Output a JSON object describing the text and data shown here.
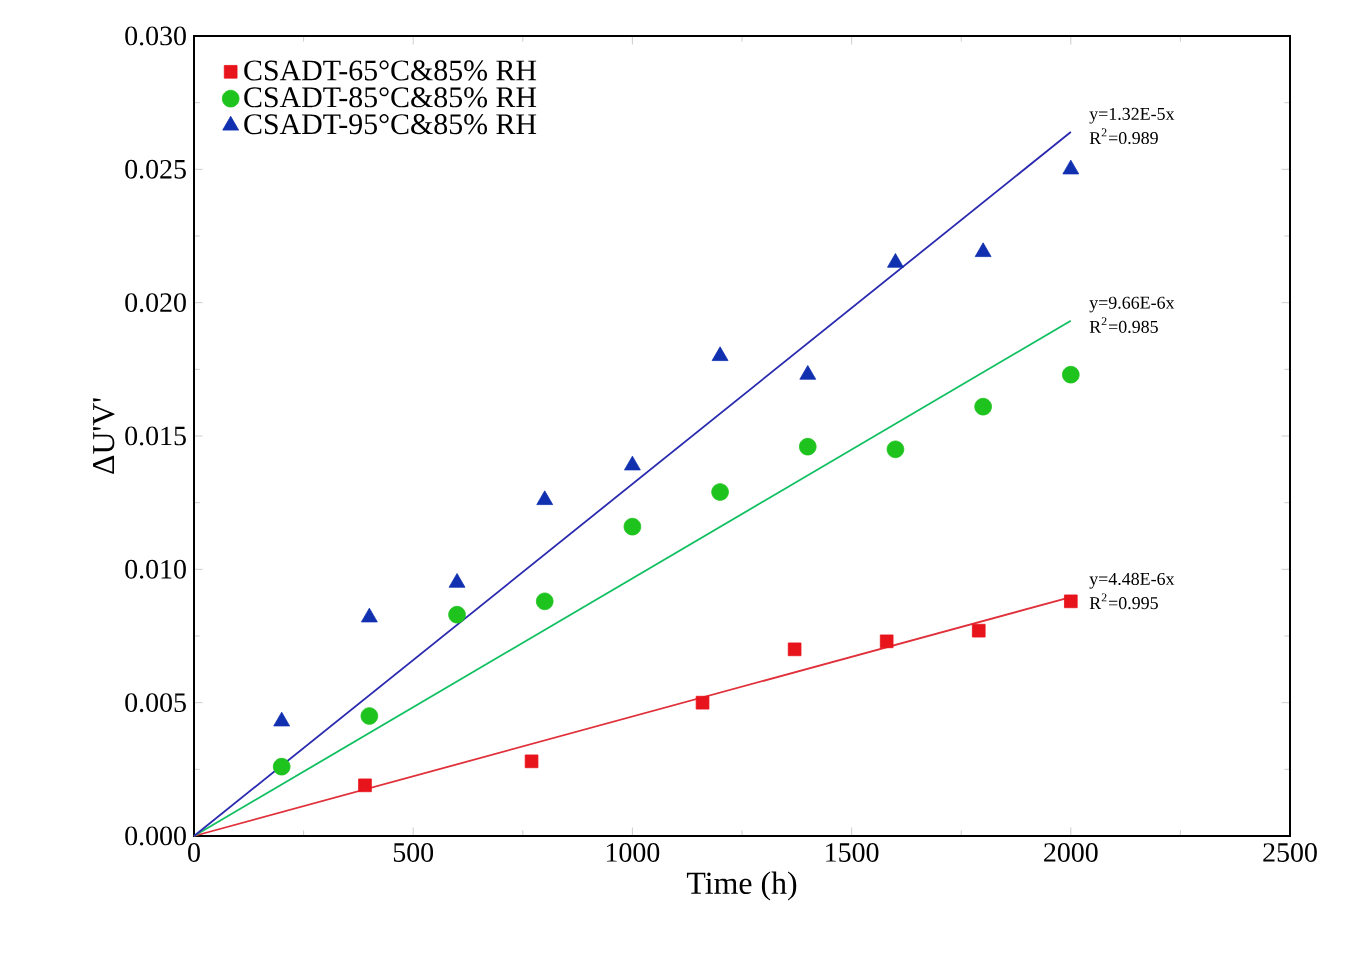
{
  "chart_data": {
    "type": "scatter",
    "xlabel": "Time (h)",
    "ylabel": "ΔU'V'",
    "xlim": [
      0,
      2500
    ],
    "ylim": [
      0,
      0.03
    ],
    "xticks": [
      0,
      500,
      1000,
      1500,
      2000,
      2500
    ],
    "yticks": [
      {
        "value": 0,
        "label": "0.000"
      },
      {
        "value": 0.005,
        "label": "0.005"
      },
      {
        "value": 0.01,
        "label": "0.010"
      },
      {
        "value": 0.015,
        "label": "0.015"
      },
      {
        "value": 0.02,
        "label": "0.020"
      },
      {
        "value": 0.025,
        "label": "0.025"
      },
      {
        "value": 0.03,
        "label": "0.030"
      }
    ],
    "legend": "top left",
    "grid": false,
    "series": [
      {
        "name": "CSADT-65°C&85% RH",
        "color": "#e8141b",
        "marker": "square",
        "x": [
          390,
          770,
          1160,
          1370,
          1580,
          1790,
          2000
        ],
        "values": [
          0.0019,
          0.0028,
          0.005,
          0.007,
          0.0073,
          0.0077,
          0.0088
        ]
      },
      {
        "name": "CSADT-85°C&85% RH",
        "color": "#1ec31e",
        "marker": "circle",
        "x": [
          200,
          400,
          600,
          800,
          1000,
          1200,
          1400,
          1600,
          1800,
          2000
        ],
        "values": [
          0.0026,
          0.0045,
          0.0083,
          0.0088,
          0.0116,
          0.0129,
          0.0146,
          0.0145,
          0.0161,
          0.0173
        ]
      },
      {
        "name": "CSADT-95°C&85% RH",
        "color": "#1030b0",
        "marker": "triangle",
        "x": [
          200,
          400,
          600,
          800,
          1000,
          1200,
          1400,
          1600,
          1800,
          2000
        ],
        "values": [
          0.0043,
          0.0082,
          0.0095,
          0.0126,
          0.0139,
          0.018,
          0.0173,
          0.0215,
          0.0219,
          0.025
        ]
      },
      {
        "type": "line",
        "color": "#e0303a",
        "x": [
          0,
          2000
        ],
        "values": [
          0,
          0.00896
        ]
      },
      {
        "type": "line",
        "color": "#10c060",
        "x": [
          0,
          2000
        ],
        "values": [
          0,
          0.01932
        ]
      },
      {
        "type": "line",
        "color": "#2a2ab0",
        "x": [
          0,
          2000
        ],
        "values": [
          0,
          0.0264
        ]
      }
    ],
    "annotations": [
      "y=4.48E-6x",
      "R$^{2}$=0.995",
      "y=9.66E-6x",
      "R$^{2}$=0.985",
      "y=1.32E-5x",
      "R$^{2}$=0.989"
    ]
  }
}
